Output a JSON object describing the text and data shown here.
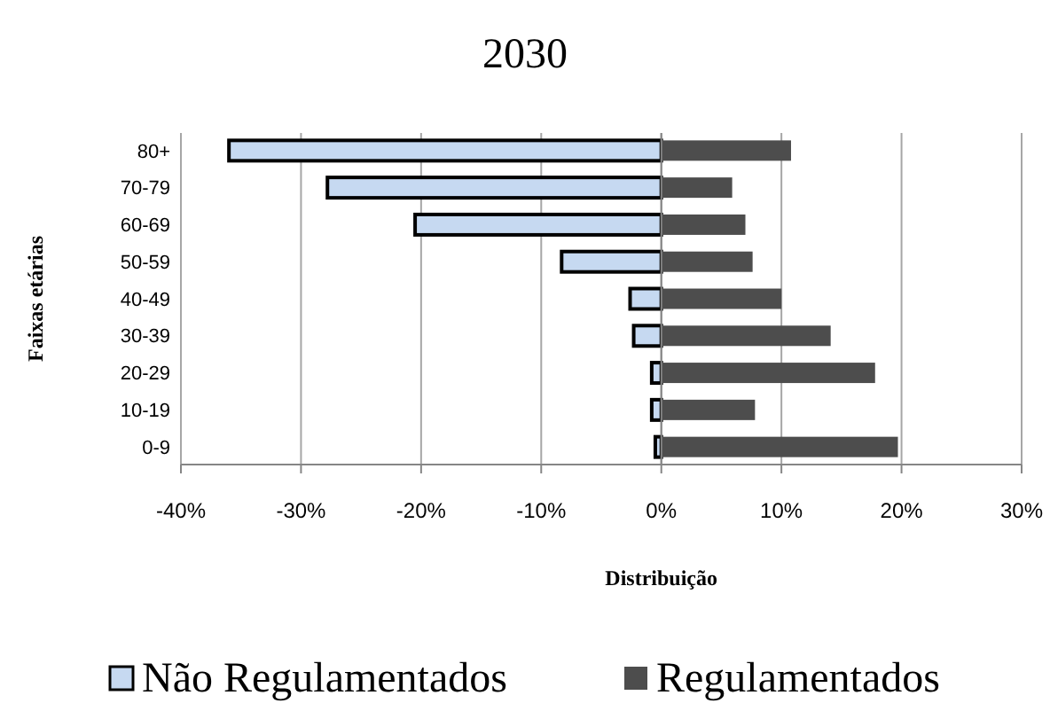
{
  "chart_data": {
    "type": "bar",
    "orientation": "horizontal",
    "title": "2030",
    "xlabel": "Distribuição",
    "ylabel": "Faixas etárias",
    "categories": [
      "80+",
      "70-79",
      "60-69",
      "50-59",
      "40-49",
      "30-39",
      "20-29",
      "10-19",
      "0-9"
    ],
    "series": [
      {
        "name": "Não Regulamentados",
        "color": "#c6d9f1",
        "values": [
          -36.0,
          -27.8,
          -20.5,
          -8.3,
          -2.6,
          -2.3,
          -0.8,
          -0.8,
          -0.5
        ]
      },
      {
        "name": "Regulamentados",
        "color": "#4d4d4d",
        "values": [
          10.8,
          5.9,
          7.0,
          7.6,
          10.0,
          14.1,
          17.8,
          7.8,
          19.7
        ]
      }
    ],
    "xlim": [
      -40,
      30
    ],
    "xticks": [
      {
        "value": -40,
        "label": "-40%"
      },
      {
        "value": -30,
        "label": "-30%"
      },
      {
        "value": -20,
        "label": "-20%"
      },
      {
        "value": -10,
        "label": "-10%"
      },
      {
        "value": 0,
        "label": "0%"
      },
      {
        "value": 10,
        "label": "10%"
      },
      {
        "value": 20,
        "label": "20%"
      },
      {
        "value": 30,
        "label": "30%"
      }
    ],
    "stacked": true,
    "grid": "x",
    "legend": "bottom"
  }
}
